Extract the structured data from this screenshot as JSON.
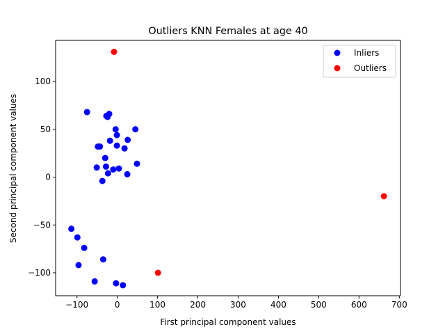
{
  "chart_data": {
    "type": "scatter",
    "title": "Outliers KNN Females at age 40",
    "xlabel": "First principal component values",
    "ylabel": "Second principal component values",
    "xlim": [
      -153,
      703
    ],
    "ylim": [
      -124,
      143
    ],
    "xticks": [
      -100,
      0,
      100,
      200,
      300,
      400,
      500,
      600,
      700
    ],
    "yticks": [
      -100,
      -50,
      0,
      50,
      100
    ],
    "grid": false,
    "legend": "top-right",
    "series": [
      {
        "name": "Inliers",
        "color": "#0000ff",
        "points": [
          [
            -75,
            68
          ],
          [
            -27,
            64
          ],
          [
            -20,
            66
          ],
          [
            -24,
            63
          ],
          [
            -4,
            50
          ],
          [
            -1,
            44
          ],
          [
            45,
            50
          ],
          [
            -18,
            38
          ],
          [
            26,
            39
          ],
          [
            -48,
            32
          ],
          [
            -43,
            32
          ],
          [
            -1,
            33
          ],
          [
            18,
            30
          ],
          [
            -30,
            20
          ],
          [
            -51,
            10
          ],
          [
            -28,
            11
          ],
          [
            -10,
            8
          ],
          [
            4,
            9
          ],
          [
            49,
            14
          ],
          [
            -23,
            4
          ],
          [
            25,
            3
          ],
          [
            -37,
            -4
          ],
          [
            -114,
            -54
          ],
          [
            -99,
            -63
          ],
          [
            -82,
            -74
          ],
          [
            -96,
            -92
          ],
          [
            -35,
            -86
          ],
          [
            -56,
            -109
          ],
          [
            -3,
            -111
          ],
          [
            14,
            -113
          ]
        ]
      },
      {
        "name": "Outliers",
        "color": "#ff0000",
        "points": [
          [
            -8,
            131
          ],
          [
            662,
            -20
          ],
          [
            101,
            -100
          ]
        ]
      }
    ]
  }
}
